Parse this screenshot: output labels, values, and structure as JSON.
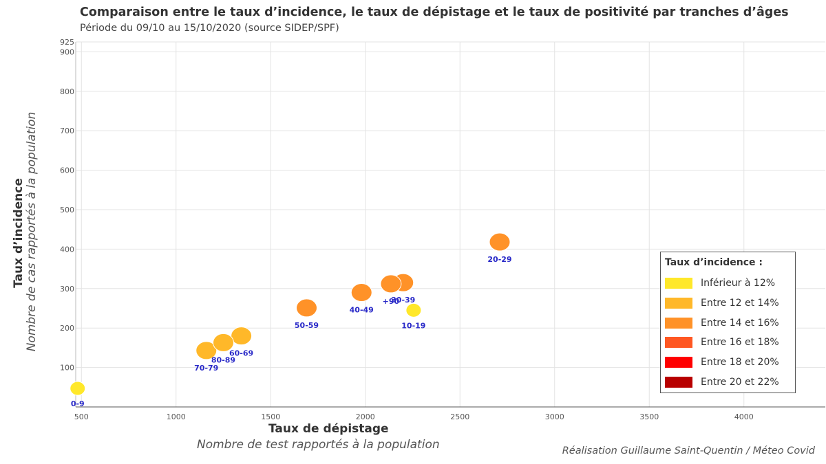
{
  "title": "Comparaison entre le taux d’incidence, le taux de dépistage et le taux de positivité par tranches d’âges",
  "subtitle": "Période du 09/10 au 15/10/2020 (source SIDEP/SPF)",
  "credit": "Réalisation Guillaume Saint-Quentin / Méteo Covid",
  "chart_data": {
    "type": "scatter",
    "xlabel": "Taux de dépistage",
    "xlabel_sub": "Nombre de test rapportés à la population",
    "ylabel": "Taux d’incidence",
    "ylabel_sub": "Nombre de cas rapportés à la population",
    "xlim": [
      470,
      4430
    ],
    "ylim": [
      0,
      925
    ],
    "x_ticks": [
      500,
      1000,
      1500,
      2000,
      2500,
      3000,
      3500,
      4000
    ],
    "y_ticks": [
      100,
      200,
      300,
      400,
      500,
      600,
      700,
      800,
      900,
      925
    ],
    "grid": true,
    "points": [
      {
        "label": "0-9",
        "x": 480,
        "y": 47,
        "color": "#ffe82a"
      },
      {
        "label": "10-19",
        "x": 2255,
        "y": 245,
        "color": "#ffe82a"
      },
      {
        "label": "20-29",
        "x": 2710,
        "y": 418,
        "color": "#ff9228"
      },
      {
        "label": "30-39",
        "x": 2200,
        "y": 315,
        "color": "#ff9228"
      },
      {
        "label": "40-49",
        "x": 1980,
        "y": 290,
        "color": "#ff9228"
      },
      {
        "label": "50-59",
        "x": 1690,
        "y": 251,
        "color": "#ff9228"
      },
      {
        "label": "60-69",
        "x": 1345,
        "y": 180,
        "color": "#ffb829"
      },
      {
        "label": "70-79",
        "x": 1160,
        "y": 143,
        "color": "#ffb829"
      },
      {
        "label": "80-89",
        "x": 1250,
        "y": 163,
        "color": "#ffb829"
      },
      {
        "label": "+90",
        "x": 2135,
        "y": 312,
        "color": "#ff9228"
      }
    ],
    "legend": {
      "title": "Taux d’incidence :",
      "placement": "bottom-right",
      "items": [
        {
          "label": "Inférieur à 12%",
          "color": "#ffe82a"
        },
        {
          "label": "Entre 12 et 14%",
          "color": "#ffb829"
        },
        {
          "label": "Entre 14 et 16%",
          "color": "#ff9228"
        },
        {
          "label": "Entre 16 et 18%",
          "color": "#ff5722"
        },
        {
          "label": "Entre 18 et 20%",
          "color": "#ff0000"
        },
        {
          "label": "Entre 20 et 22%",
          "color": "#b80000"
        }
      ]
    }
  }
}
